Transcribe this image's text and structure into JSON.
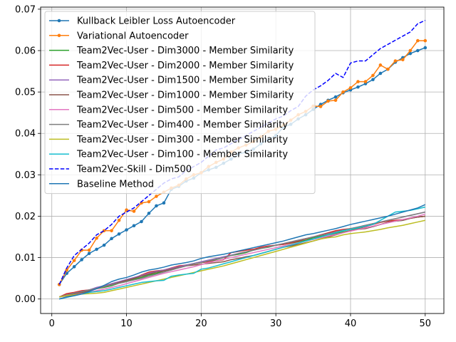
{
  "chart_data": {
    "type": "line",
    "grid": true,
    "legend_position": "top-left",
    "xlim": [
      -1.5,
      52.5
    ],
    "ylim": [
      -0.0035,
      0.0705
    ],
    "xticks": [
      "0",
      "10",
      "20",
      "30",
      "40",
      "50"
    ],
    "yticks": [
      "0.00",
      "0.01",
      "0.02",
      "0.03",
      "0.04",
      "0.05",
      "0.06",
      "0.07"
    ],
    "xtick_values": [
      0,
      10,
      20,
      30,
      40,
      50
    ],
    "ytick_values": [
      0.0,
      0.01,
      0.02,
      0.03,
      0.04,
      0.05,
      0.06,
      0.07
    ],
    "x": [
      1,
      2,
      3,
      4,
      5,
      6,
      7,
      8,
      9,
      10,
      11,
      12,
      13,
      14,
      15,
      16,
      17,
      18,
      19,
      20,
      21,
      22,
      23,
      24,
      25,
      26,
      27,
      28,
      29,
      30,
      31,
      32,
      33,
      34,
      35,
      36,
      37,
      38,
      39,
      40,
      41,
      42,
      43,
      44,
      45,
      46,
      47,
      48,
      49,
      50
    ],
    "series": [
      {
        "name": "Kullback Leibler Loss Autoencoder",
        "color": "#1f77b4",
        "style": "solid",
        "marker": true,
        "values": [
          0.0035,
          0.0062,
          0.0078,
          0.0095,
          0.011,
          0.012,
          0.013,
          0.0146,
          0.0157,
          0.0167,
          0.0177,
          0.0187,
          0.0207,
          0.0225,
          0.0232,
          0.0265,
          0.0272,
          0.0285,
          0.0292,
          0.0305,
          0.0312,
          0.0318,
          0.0328,
          0.0338,
          0.035,
          0.0355,
          0.0362,
          0.0375,
          0.0385,
          0.0395,
          0.0415,
          0.0422,
          0.0435,
          0.0445,
          0.0458,
          0.047,
          0.048,
          0.0488,
          0.0498,
          0.0505,
          0.0512,
          0.052,
          0.053,
          0.0545,
          0.0555,
          0.0572,
          0.0583,
          0.0593,
          0.06,
          0.0607
        ]
      },
      {
        "name": "Variational Autoencoder",
        "color": "#ff7f0e",
        "style": "solid",
        "marker": true,
        "values": [
          0.0035,
          0.007,
          0.0093,
          0.0118,
          0.0118,
          0.0147,
          0.0165,
          0.0165,
          0.019,
          0.0215,
          0.0212,
          0.0232,
          0.0235,
          0.0248,
          0.0258,
          0.0268,
          0.0275,
          0.029,
          0.03,
          0.0305,
          0.032,
          0.033,
          0.0338,
          0.0355,
          0.0365,
          0.0372,
          0.038,
          0.0392,
          0.0405,
          0.041,
          0.042,
          0.0432,
          0.0445,
          0.0453,
          0.0466,
          0.0465,
          0.0478,
          0.048,
          0.05,
          0.051,
          0.0525,
          0.0525,
          0.054,
          0.0565,
          0.0555,
          0.0575,
          0.0578,
          0.06,
          0.0624,
          0.0624
        ]
      },
      {
        "name": "Team2Vec-User - Dim3000 - Member Similarity",
        "color": "#2ca02c",
        "style": "solid",
        "marker": false,
        "values": [
          0.0005,
          0.0008,
          0.0012,
          0.0015,
          0.002,
          0.0025,
          0.0028,
          0.0032,
          0.0038,
          0.0042,
          0.0048,
          0.0052,
          0.0058,
          0.0062,
          0.0068,
          0.0072,
          0.0078,
          0.0082,
          0.0085,
          0.0088,
          0.009,
          0.0095,
          0.01,
          0.0105,
          0.0108,
          0.0112,
          0.0118,
          0.0122,
          0.0125,
          0.013,
          0.0132,
          0.0135,
          0.0138,
          0.0142,
          0.0148,
          0.0152,
          0.0155,
          0.0158,
          0.0162,
          0.0165,
          0.017,
          0.0172,
          0.0175,
          0.018,
          0.0185,
          0.0188,
          0.019,
          0.0195,
          0.0198,
          0.02
        ]
      },
      {
        "name": "Team2Vec-User - Dim2000 - Member Similarity",
        "color": "#d62728",
        "style": "solid",
        "marker": false,
        "values": [
          0.0005,
          0.0013,
          0.0016,
          0.002,
          0.0022,
          0.0025,
          0.003,
          0.0035,
          0.004,
          0.0045,
          0.005,
          0.0058,
          0.0065,
          0.0068,
          0.007,
          0.0075,
          0.008,
          0.0082,
          0.0085,
          0.0088,
          0.009,
          0.0092,
          0.0095,
          0.0112,
          0.0115,
          0.0118,
          0.012,
          0.0125,
          0.0128,
          0.013,
          0.0132,
          0.0136,
          0.014,
          0.0145,
          0.015,
          0.0155,
          0.016,
          0.0165,
          0.0168,
          0.017,
          0.0172,
          0.0175,
          0.018,
          0.0185,
          0.0188,
          0.019,
          0.0192,
          0.0195,
          0.0198,
          0.02
        ]
      },
      {
        "name": "Team2Vec-User - Dim1500 - Member Similarity",
        "color": "#9467bd",
        "style": "solid",
        "marker": false,
        "values": [
          0.0005,
          0.001,
          0.0014,
          0.0018,
          0.0022,
          0.0028,
          0.0032,
          0.0037,
          0.0042,
          0.0047,
          0.0052,
          0.0057,
          0.0062,
          0.0067,
          0.007,
          0.0074,
          0.0078,
          0.0082,
          0.0086,
          0.009,
          0.0094,
          0.0098,
          0.0102,
          0.0106,
          0.011,
          0.0114,
          0.0118,
          0.0122,
          0.0126,
          0.013,
          0.0134,
          0.0138,
          0.0142,
          0.0146,
          0.015,
          0.0154,
          0.0158,
          0.0162,
          0.0166,
          0.017,
          0.0174,
          0.0178,
          0.0182,
          0.0186,
          0.019,
          0.0194,
          0.0198,
          0.0202,
          0.0206,
          0.021
        ]
      },
      {
        "name": "Team2Vec-User - Dim1000 - Member Similarity",
        "color": "#8c564b",
        "style": "solid",
        "marker": false,
        "values": [
          0.0005,
          0.0008,
          0.0012,
          0.0016,
          0.002,
          0.0025,
          0.003,
          0.0035,
          0.004,
          0.0045,
          0.005,
          0.0055,
          0.006,
          0.0065,
          0.0068,
          0.0072,
          0.0076,
          0.008,
          0.0082,
          0.0084,
          0.0086,
          0.0088,
          0.009,
          0.0095,
          0.0098,
          0.0102,
          0.0105,
          0.011,
          0.0115,
          0.012,
          0.0125,
          0.0128,
          0.0132,
          0.0136,
          0.014,
          0.0145,
          0.015,
          0.0155,
          0.016,
          0.0165,
          0.0168,
          0.017,
          0.0175,
          0.018,
          0.0185,
          0.0188,
          0.019,
          0.0195,
          0.0198,
          0.02
        ]
      },
      {
        "name": "Team2Vec-User - Dim500 - Member Similarity",
        "color": "#e377c2",
        "style": "solid",
        "marker": false,
        "values": [
          0.0005,
          0.0007,
          0.001,
          0.0013,
          0.0016,
          0.002,
          0.0024,
          0.0028,
          0.0032,
          0.0037,
          0.0042,
          0.0047,
          0.0052,
          0.0057,
          0.0062,
          0.0066,
          0.007,
          0.0074,
          0.0078,
          0.0083,
          0.0088,
          0.0092,
          0.0096,
          0.01,
          0.0104,
          0.0108,
          0.0112,
          0.0116,
          0.012,
          0.0124,
          0.0128,
          0.0132,
          0.0136,
          0.014,
          0.0144,
          0.0148,
          0.0152,
          0.0156,
          0.016,
          0.0164,
          0.0168,
          0.0172,
          0.0176,
          0.018,
          0.0184,
          0.0188,
          0.0192,
          0.0196,
          0.02,
          0.0205
        ]
      },
      {
        "name": "Team2Vec-User - Dim400 - Member Similarity",
        "color": "#7f7f7f",
        "style": "solid",
        "marker": false,
        "values": [
          0.0005,
          0.001,
          0.0014,
          0.0018,
          0.0022,
          0.0026,
          0.003,
          0.0034,
          0.0038,
          0.0042,
          0.0046,
          0.005,
          0.0055,
          0.006,
          0.0065,
          0.007,
          0.0075,
          0.008,
          0.0085,
          0.0088,
          0.0092,
          0.0096,
          0.01,
          0.0105,
          0.011,
          0.0114,
          0.0118,
          0.0122,
          0.0126,
          0.013,
          0.0134,
          0.0138,
          0.0142,
          0.0146,
          0.015,
          0.0154,
          0.0158,
          0.0162,
          0.0166,
          0.017,
          0.0174,
          0.0178,
          0.0182,
          0.0186,
          0.019,
          0.0194,
          0.0198,
          0.0202,
          0.0206,
          0.021
        ]
      },
      {
        "name": "Team2Vec-User - Dim300 - Member Similarity",
        "color": "#bcbd22",
        "style": "solid",
        "marker": false,
        "values": [
          0.0005,
          0.0008,
          0.001,
          0.0012,
          0.0013,
          0.0014,
          0.0016,
          0.002,
          0.0024,
          0.0028,
          0.0032,
          0.0036,
          0.004,
          0.0044,
          0.0048,
          0.0052,
          0.0056,
          0.006,
          0.0064,
          0.0068,
          0.0072,
          0.0076,
          0.008,
          0.0085,
          0.009,
          0.0095,
          0.01,
          0.0105,
          0.011,
          0.0115,
          0.012,
          0.0125,
          0.013,
          0.0135,
          0.014,
          0.0145,
          0.0148,
          0.015,
          0.0155,
          0.0158,
          0.016,
          0.0162,
          0.0165,
          0.0168,
          0.0172,
          0.0175,
          0.0178,
          0.0182,
          0.0186,
          0.019
        ]
      },
      {
        "name": "Team2Vec-User - Dim100 - Member Similarity",
        "color": "#17becf",
        "style": "solid",
        "marker": false,
        "values": [
          0.0,
          0.0004,
          0.0008,
          0.0012,
          0.0016,
          0.0018,
          0.002,
          0.0024,
          0.0028,
          0.0032,
          0.0036,
          0.004,
          0.0042,
          0.0044,
          0.0045,
          0.0055,
          0.0058,
          0.006,
          0.0062,
          0.0072,
          0.0075,
          0.008,
          0.0085,
          0.009,
          0.0095,
          0.01,
          0.0105,
          0.011,
          0.0115,
          0.012,
          0.0125,
          0.013,
          0.0135,
          0.014,
          0.0145,
          0.015,
          0.0155,
          0.016,
          0.0165,
          0.0168,
          0.0172,
          0.0176,
          0.018,
          0.019,
          0.02,
          0.021,
          0.0212,
          0.0214,
          0.0218,
          0.0222
        ]
      },
      {
        "name": "Team2Vec-Skill - Dim500",
        "color": "#0000ff",
        "style": "dashed",
        "marker": false,
        "values": [
          0.0035,
          0.0075,
          0.0105,
          0.012,
          0.0135,
          0.0155,
          0.0165,
          0.018,
          0.02,
          0.021,
          0.022,
          0.0235,
          0.025,
          0.0265,
          0.028,
          0.029,
          0.0295,
          0.031,
          0.032,
          0.033,
          0.0345,
          0.036,
          0.0365,
          0.0375,
          0.0385,
          0.0395,
          0.0405,
          0.0415,
          0.0425,
          0.0435,
          0.0442,
          0.0455,
          0.0465,
          0.049,
          0.0505,
          0.0515,
          0.0528,
          0.0545,
          0.0535,
          0.057,
          0.0575,
          0.0575,
          0.059,
          0.0605,
          0.0615,
          0.0625,
          0.0635,
          0.0645,
          0.0665,
          0.0673
        ]
      },
      {
        "name": "Baseline Method",
        "color": "#1f77b4",
        "style": "solid",
        "marker": false,
        "values": [
          0.0,
          0.0005,
          0.0008,
          0.0012,
          0.0018,
          0.0025,
          0.0033,
          0.0042,
          0.0048,
          0.0052,
          0.0058,
          0.0065,
          0.007,
          0.0073,
          0.0077,
          0.0082,
          0.0085,
          0.0088,
          0.0092,
          0.0098,
          0.0102,
          0.0105,
          0.0108,
          0.0112,
          0.0116,
          0.012,
          0.0124,
          0.0128,
          0.0132,
          0.0136,
          0.014,
          0.0145,
          0.015,
          0.0155,
          0.0158,
          0.0162,
          0.0166,
          0.017,
          0.0175,
          0.018,
          0.0184,
          0.0188,
          0.0192,
          0.0196,
          0.02,
          0.0205,
          0.021,
          0.0215,
          0.022,
          0.0228
        ]
      }
    ]
  }
}
